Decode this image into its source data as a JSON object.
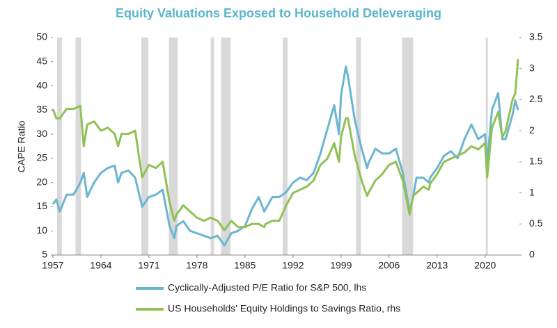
{
  "chart_data": {
    "type": "line",
    "title": "Equity Valuations Exposed to Household Deleveraging",
    "y_label": "CAPE Ratio",
    "xlim": [
      1957,
      2025
    ],
    "xticks": [
      1957,
      1964,
      1971,
      1978,
      1985,
      1992,
      1999,
      2006,
      2013,
      2020
    ],
    "ylim": [
      5,
      50
    ],
    "yticks": [
      5,
      10,
      15,
      20,
      25,
      30,
      35,
      40,
      45,
      50
    ],
    "y2lim": [
      0,
      3.5
    ],
    "y2ticks": [
      0,
      0.5,
      1,
      1.5,
      2,
      2.5,
      3,
      3.5
    ],
    "recession_color": "#d9d9d9",
    "recessions": [
      [
        1957.6,
        1958.3
      ],
      [
        1960.3,
        1961.1
      ],
      [
        1969.9,
        1970.9
      ],
      [
        1973.9,
        1975.2
      ],
      [
        1980.0,
        1980.5
      ],
      [
        1981.5,
        1982.9
      ],
      [
        1990.5,
        1991.2
      ],
      [
        2001.2,
        2001.9
      ],
      [
        2007.9,
        2009.5
      ],
      [
        2020.1,
        2020.4
      ]
    ],
    "x": [
      1957,
      1957.5,
      1958,
      1959,
      1960,
      1961,
      1961.5,
      1962,
      1963,
      1964,
      1965,
      1966,
      1966.5,
      1967,
      1968,
      1969,
      1970,
      1971,
      1972,
      1973,
      1974,
      1974.7,
      1975,
      1976,
      1977,
      1978,
      1979,
      1980,
      1981,
      1982,
      1983,
      1984,
      1985,
      1986,
      1987,
      1987.8,
      1988,
      1989,
      1990,
      1991,
      1992,
      1993,
      1994,
      1995,
      1996,
      1997,
      1998,
      1998.7,
      1999,
      1999.7,
      2000,
      2001,
      2002,
      2002.8,
      2003,
      2004,
      2005,
      2006,
      2007,
      2008,
      2009,
      2009.5,
      2010,
      2011,
      2011.8,
      2012,
      2013,
      2014,
      2015,
      2016,
      2017,
      2018,
      2019,
      2020,
      2020.3,
      2021,
      2021.9,
      2022.5,
      2023,
      2024,
      2024.4,
      2024.8
    ],
    "series": [
      {
        "name": "Cyclically-Adjusted P/E Ratio for S&P 500, lhs",
        "color": "#6bb5d0",
        "axis": "y",
        "values": [
          15.5,
          16.5,
          14,
          17.5,
          17.5,
          20,
          22,
          17,
          20,
          22,
          23,
          23.5,
          20,
          22,
          22.5,
          21,
          15,
          17,
          17.5,
          18.5,
          11,
          8.5,
          11,
          12,
          10,
          9.5,
          9,
          8.5,
          9,
          7,
          9.5,
          10,
          11,
          14.5,
          17,
          14,
          14.5,
          17,
          17,
          18,
          20,
          21,
          20.5,
          22,
          26,
          31,
          36,
          30,
          38,
          44,
          42,
          33,
          27,
          23,
          24,
          27,
          26,
          26,
          27,
          22,
          14,
          17,
          21,
          21,
          20,
          21,
          23,
          25.5,
          26.5,
          25,
          29,
          32,
          29,
          30,
          24,
          35,
          38.5,
          29,
          29,
          34,
          37,
          35
        ]
      },
      {
        "name": "US Households' Equity Holdings to Savings Ratio, rhs",
        "color": "#8fc154",
        "axis": "y2",
        "values": [
          2.35,
          2.2,
          2.2,
          2.35,
          2.35,
          2.4,
          1.75,
          2.1,
          2.15,
          2.0,
          2.05,
          1.95,
          1.75,
          1.95,
          1.95,
          2.0,
          1.25,
          1.45,
          1.4,
          1.5,
          0.85,
          0.55,
          0.65,
          0.8,
          0.7,
          0.6,
          0.55,
          0.6,
          0.55,
          0.4,
          0.55,
          0.45,
          0.45,
          0.5,
          0.5,
          0.45,
          0.5,
          0.55,
          0.55,
          0.8,
          1.0,
          1.05,
          1.1,
          1.2,
          1.45,
          1.55,
          1.8,
          1.5,
          1.9,
          2.2,
          2.2,
          1.6,
          1.2,
          0.95,
          1.0,
          1.2,
          1.3,
          1.45,
          1.5,
          1.2,
          0.65,
          0.95,
          1.0,
          1.1,
          1.05,
          1.15,
          1.3,
          1.5,
          1.55,
          1.6,
          1.65,
          1.75,
          1.7,
          1.8,
          1.25,
          2.05,
          2.3,
          1.9,
          2.0,
          2.5,
          2.6,
          3.15
        ]
      }
    ]
  }
}
